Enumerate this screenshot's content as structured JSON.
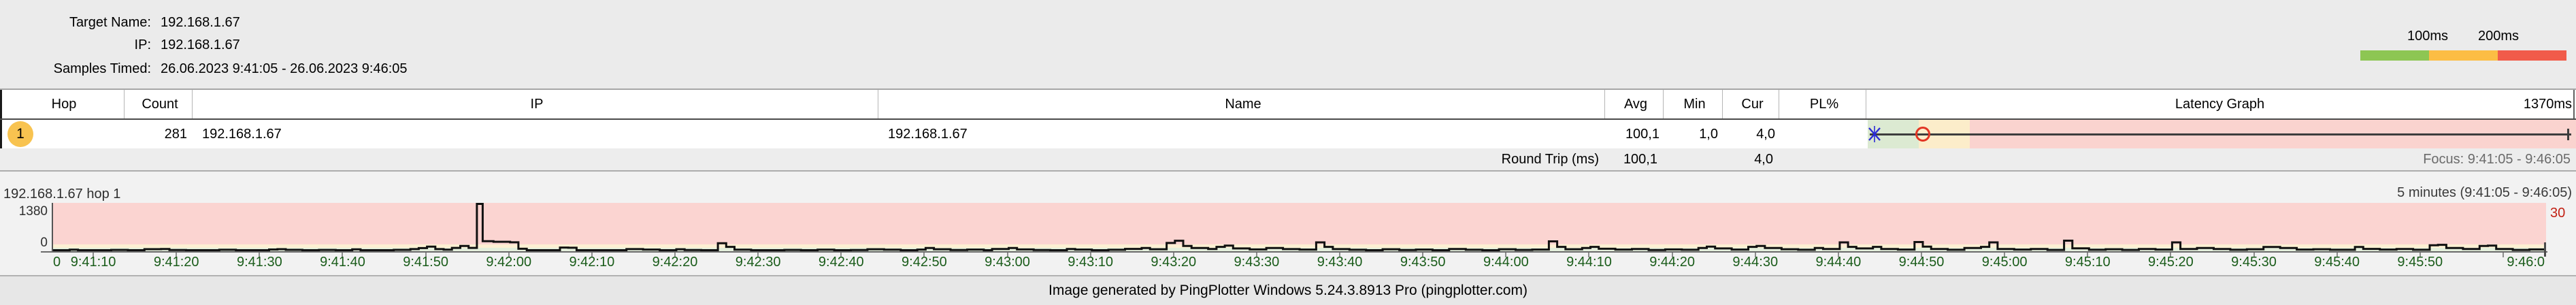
{
  "header": {
    "fields": [
      {
        "label": "Target Name:",
        "value": "192.168.1.67"
      },
      {
        "label": "IP:",
        "value": "192.168.1.67"
      },
      {
        "label": "Samples Timed:",
        "value": "26.06.2023 9:41:05 - 26.06.2023 9:46:05"
      }
    ],
    "legend": {
      "threshold_labels": [
        "100ms",
        "200ms"
      ],
      "segment_colors": [
        "#8dc653",
        "#fcbd44",
        "#f15b4a"
      ]
    }
  },
  "table": {
    "columns": [
      "Hop",
      "Count",
      "IP",
      "Name",
      "Avg",
      "Min",
      "Cur",
      "PL%",
      "Latency Graph"
    ],
    "latency_scale_max_label": "1370ms",
    "row": {
      "hop": "1",
      "count": "281",
      "ip": "192.168.1.67",
      "name": "192.168.1.67",
      "avg": "100,1",
      "min": "1,0",
      "cur": "4,0",
      "pl_pct": "",
      "latency_markers": {
        "cur_x_ms": 10,
        "avg_circle_ms": 108,
        "max_tick_ms": 1370,
        "scale_max_ms": 1370,
        "green_max_ms": 100,
        "yellow_max_ms": 200,
        "band_colors": {
          "good": "#dcead2",
          "warn": "#fcedca",
          "bad": "#fad3cf"
        },
        "x_marker_color": "#2b2bd6",
        "circle_color": "#e23523"
      }
    },
    "summary": {
      "label": "Round Trip (ms)",
      "avg": "100,1",
      "cur": "4,0",
      "focus_label": "Focus: 9:41:05 - 9:46:05"
    }
  },
  "chart_data": {
    "type": "line",
    "title": "192.168.1.67 hop 1",
    "range_label": "5 minutes (9:41:05 - 9:46:05)",
    "ylim": [
      0,
      1380
    ],
    "y_axis_max_label": "1380",
    "y_axis_min_label": "0",
    "right_axis_label": "30",
    "x_start_label": "0",
    "duration_s": 300,
    "grid": false,
    "zone_colors": {
      "good": "#e4efdc",
      "warn": "#fdf0d3",
      "bad": "#fbd4d1"
    },
    "zones_ms": {
      "green_max": 100,
      "yellow_max": 200
    },
    "tick_label_color": "#1a5c1a",
    "x_ticks": [
      {
        "t": 5,
        "label": "9:41:10"
      },
      {
        "t": 15,
        "label": "9:41:20"
      },
      {
        "t": 25,
        "label": "9:41:30"
      },
      {
        "t": 35,
        "label": "9:41:40"
      },
      {
        "t": 45,
        "label": "9:41:50"
      },
      {
        "t": 55,
        "label": "9:42:00"
      },
      {
        "t": 65,
        "label": "9:42:10"
      },
      {
        "t": 75,
        "label": "9:42:20"
      },
      {
        "t": 85,
        "label": "9:42:30"
      },
      {
        "t": 95,
        "label": "9:42:40"
      },
      {
        "t": 105,
        "label": "9:42:50"
      },
      {
        "t": 115,
        "label": "9:43:00"
      },
      {
        "t": 125,
        "label": "9:43:10"
      },
      {
        "t": 135,
        "label": "9:43:20"
      },
      {
        "t": 145,
        "label": "9:43:30"
      },
      {
        "t": 155,
        "label": "9:43:40"
      },
      {
        "t": 165,
        "label": "9:43:50"
      },
      {
        "t": 175,
        "label": "9:44:00"
      },
      {
        "t": 185,
        "label": "9:44:10"
      },
      {
        "t": 195,
        "label": "9:44:20"
      },
      {
        "t": 205,
        "label": "9:44:30"
      },
      {
        "t": 215,
        "label": "9:44:40"
      },
      {
        "t": 225,
        "label": "9:44:50"
      },
      {
        "t": 235,
        "label": "9:45:00"
      },
      {
        "t": 245,
        "label": "9:45:10"
      },
      {
        "t": 255,
        "label": "9:45:20"
      },
      {
        "t": 265,
        "label": "9:45:30"
      },
      {
        "t": 275,
        "label": "9:45:40"
      },
      {
        "t": 285,
        "label": "9:45:50"
      },
      {
        "t": 295,
        "label": "9:46:0",
        "clip": true
      }
    ],
    "samples": [
      [
        0,
        30
      ],
      [
        2,
        42
      ],
      [
        3,
        25
      ],
      [
        5,
        20
      ],
      [
        7,
        36
      ],
      [
        9,
        28
      ],
      [
        11,
        58
      ],
      [
        13,
        62
      ],
      [
        14,
        34
      ],
      [
        16,
        22
      ],
      [
        18,
        30
      ],
      [
        20,
        40
      ],
      [
        22,
        30
      ],
      [
        24,
        26
      ],
      [
        26,
        48
      ],
      [
        27,
        58
      ],
      [
        28,
        38
      ],
      [
        30,
        24
      ],
      [
        32,
        36
      ],
      [
        34,
        28
      ],
      [
        36,
        55
      ],
      [
        37,
        30
      ],
      [
        39,
        20
      ],
      [
        41,
        38
      ],
      [
        43,
        60
      ],
      [
        44,
        90
      ],
      [
        45,
        130
      ],
      [
        46,
        60
      ],
      [
        47,
        42
      ],
      [
        48,
        95
      ],
      [
        49,
        150
      ],
      [
        50,
        95
      ],
      [
        51,
        1380
      ],
      [
        51.7,
        285
      ],
      [
        53,
        270
      ],
      [
        55,
        255
      ],
      [
        56,
        70
      ],
      [
        57,
        10
      ],
      [
        60,
        6
      ],
      [
        61,
        105
      ],
      [
        62,
        100
      ],
      [
        63,
        14
      ],
      [
        65,
        8
      ],
      [
        67,
        12
      ],
      [
        69,
        60
      ],
      [
        71,
        46
      ],
      [
        73,
        20
      ],
      [
        75,
        56
      ],
      [
        76,
        34
      ],
      [
        78,
        24
      ],
      [
        80,
        230
      ],
      [
        81,
        125
      ],
      [
        82,
        45
      ],
      [
        84,
        30
      ],
      [
        86,
        20
      ],
      [
        88,
        36
      ],
      [
        90,
        26
      ],
      [
        92,
        42
      ],
      [
        94,
        30
      ],
      [
        96,
        34
      ],
      [
        98,
        56
      ],
      [
        100,
        42
      ],
      [
        102,
        30
      ],
      [
        104,
        46
      ],
      [
        105,
        92
      ],
      [
        106,
        56
      ],
      [
        108,
        34
      ],
      [
        110,
        46
      ],
      [
        112,
        30
      ],
      [
        113,
        62
      ],
      [
        115,
        92
      ],
      [
        116,
        50
      ],
      [
        118,
        34
      ],
      [
        120,
        30
      ],
      [
        122,
        62
      ],
      [
        123,
        46
      ],
      [
        125,
        30
      ],
      [
        127,
        40
      ],
      [
        129,
        66
      ],
      [
        131,
        92
      ],
      [
        132,
        56
      ],
      [
        134,
        235
      ],
      [
        135,
        300
      ],
      [
        136,
        150
      ],
      [
        137,
        92
      ],
      [
        139,
        62
      ],
      [
        140,
        125
      ],
      [
        141,
        160
      ],
      [
        142,
        80
      ],
      [
        144,
        50
      ],
      [
        146,
        92
      ],
      [
        148,
        60
      ],
      [
        150,
        46
      ],
      [
        152,
        252
      ],
      [
        153,
        125
      ],
      [
        154,
        60
      ],
      [
        156,
        40
      ],
      [
        158,
        30
      ],
      [
        160,
        56
      ],
      [
        162,
        34
      ],
      [
        164,
        46
      ],
      [
        166,
        30
      ],
      [
        168,
        62
      ],
      [
        170,
        40
      ],
      [
        172,
        30
      ],
      [
        174,
        56
      ],
      [
        176,
        36
      ],
      [
        178,
        46
      ],
      [
        180,
        282
      ],
      [
        181,
        125
      ],
      [
        182,
        56
      ],
      [
        184,
        92
      ],
      [
        185,
        125
      ],
      [
        186,
        70
      ],
      [
        188,
        46
      ],
      [
        190,
        62
      ],
      [
        192,
        34
      ],
      [
        194,
        50
      ],
      [
        196,
        40
      ],
      [
        198,
        92
      ],
      [
        199,
        132
      ],
      [
        200,
        80
      ],
      [
        202,
        46
      ],
      [
        204,
        125
      ],
      [
        205,
        152
      ],
      [
        206,
        92
      ],
      [
        208,
        56
      ],
      [
        210,
        40
      ],
      [
        212,
        92
      ],
      [
        213,
        62
      ],
      [
        215,
        252
      ],
      [
        216,
        125
      ],
      [
        217,
        80
      ],
      [
        219,
        125
      ],
      [
        220,
        62
      ],
      [
        222,
        46
      ],
      [
        224,
        262
      ],
      [
        225,
        132
      ],
      [
        226,
        62
      ],
      [
        228,
        40
      ],
      [
        230,
        92
      ],
      [
        232,
        125
      ],
      [
        233,
        252
      ],
      [
        234,
        62
      ],
      [
        236,
        46
      ],
      [
        238,
        62
      ],
      [
        240,
        36
      ],
      [
        242,
        302
      ],
      [
        243,
        82
      ],
      [
        245,
        40
      ],
      [
        247,
        56
      ],
      [
        249,
        36
      ],
      [
        251,
        62
      ],
      [
        253,
        46
      ],
      [
        255,
        252
      ],
      [
        256,
        62
      ],
      [
        258,
        92
      ],
      [
        260,
        62
      ],
      [
        262,
        40
      ],
      [
        264,
        56
      ],
      [
        266,
        122
      ],
      [
        268,
        92
      ],
      [
        270,
        46
      ],
      [
        272,
        56
      ],
      [
        274,
        40
      ],
      [
        277,
        122
      ],
      [
        278,
        66
      ],
      [
        280,
        46
      ],
      [
        282,
        62
      ],
      [
        284,
        40
      ],
      [
        286,
        172
      ],
      [
        287,
        182
      ],
      [
        288,
        92
      ],
      [
        290,
        62
      ],
      [
        292,
        152
      ],
      [
        293,
        162
      ],
      [
        294,
        62
      ],
      [
        296,
        36
      ],
      [
        298,
        50
      ],
      [
        300,
        42
      ]
    ]
  },
  "footer": {
    "text": "Image generated by PingPlotter Windows 5.24.3.8913 Pro (pingplotter.com)"
  }
}
